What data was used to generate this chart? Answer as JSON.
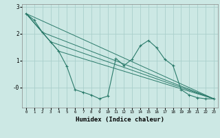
{
  "xlabel": "Humidex (Indice chaleur)",
  "bg_color": "#cce8e4",
  "grid_color": "#aacfcc",
  "line_color": "#2a7a6a",
  "xlim": [
    -0.5,
    23.5
  ],
  "ylim": [
    -0.75,
    3.1
  ],
  "yticks": [
    0.0,
    1.0,
    2.0,
    3.0
  ],
  "ytick_labels": [
    "-0",
    "1",
    "2",
    "3"
  ],
  "xticks": [
    0,
    1,
    2,
    3,
    4,
    5,
    6,
    7,
    8,
    9,
    10,
    11,
    12,
    13,
    14,
    15,
    16,
    17,
    18,
    19,
    20,
    21,
    22,
    23
  ],
  "series": [
    [
      0,
      2.75
    ],
    [
      1,
      2.5
    ],
    [
      2,
      2.05
    ],
    [
      3,
      1.7
    ],
    [
      4,
      1.35
    ],
    [
      5,
      0.78
    ],
    [
      6,
      -0.08
    ],
    [
      7,
      -0.18
    ],
    [
      8,
      -0.28
    ],
    [
      9,
      -0.42
    ],
    [
      10,
      -0.32
    ],
    [
      11,
      1.08
    ],
    [
      12,
      0.82
    ],
    [
      13,
      1.05
    ],
    [
      14,
      1.55
    ],
    [
      15,
      1.75
    ],
    [
      16,
      1.48
    ],
    [
      17,
      1.05
    ],
    [
      18,
      0.82
    ],
    [
      19,
      -0.08
    ],
    [
      20,
      -0.28
    ],
    [
      21,
      -0.38
    ],
    [
      22,
      -0.42
    ],
    [
      23,
      -0.42
    ]
  ],
  "straight_lines": [
    [
      [
        0,
        2.75
      ],
      [
        23,
        -0.42
      ]
    ],
    [
      [
        0,
        2.75
      ],
      [
        2,
        2.05
      ],
      [
        23,
        -0.42
      ]
    ],
    [
      [
        0,
        2.75
      ],
      [
        3,
        1.7
      ],
      [
        23,
        -0.42
      ]
    ],
    [
      [
        0,
        2.75
      ],
      [
        4,
        1.35
      ],
      [
        23,
        -0.42
      ]
    ]
  ]
}
